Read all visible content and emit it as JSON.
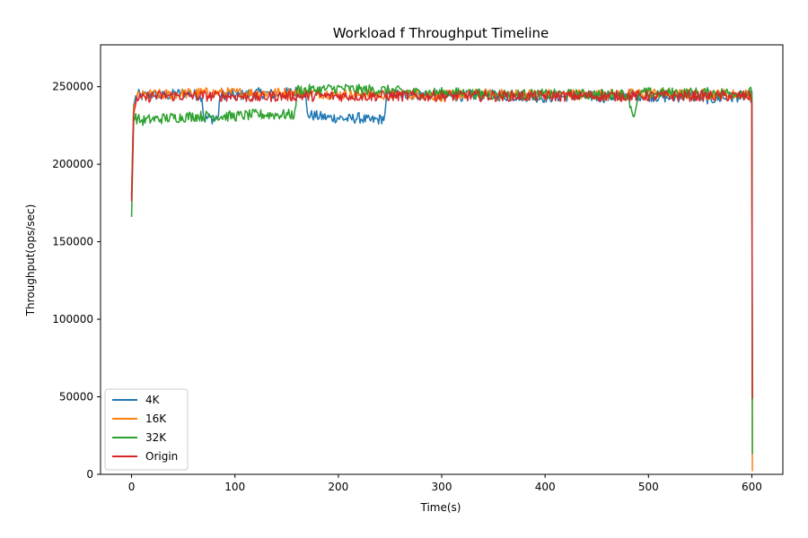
{
  "chart_data": {
    "type": "line",
    "title": "Workload f Throughput Timeline",
    "xlabel": "Time(s)",
    "ylabel": "Throughput(ops/sec)",
    "xlim": [
      -30,
      630
    ],
    "ylim": [
      0,
      277000
    ],
    "x_ticks": [
      0,
      100,
      200,
      300,
      400,
      500,
      600
    ],
    "y_ticks": [
      0,
      50000,
      100000,
      150000,
      200000,
      250000
    ],
    "grid": false,
    "legend_position": "lower-left",
    "series": [
      {
        "name": "4K",
        "color": "#1f77b4",
        "x": [
          0,
          2,
          4,
          6,
          10,
          20,
          30,
          40,
          50,
          60,
          68,
          70,
          75,
          80,
          84,
          86,
          90,
          100,
          120,
          140,
          160,
          165,
          168,
          170,
          180,
          190,
          200,
          210,
          220,
          230,
          240,
          245,
          247,
          250,
          260,
          280,
          300,
          320,
          340,
          360,
          380,
          400,
          420,
          440,
          460,
          480,
          500,
          520,
          540,
          560,
          580,
          590,
          598,
          600,
          600.5
        ],
        "y": [
          180000,
          238000,
          243000,
          245000,
          244000,
          245000,
          244000,
          245000,
          246000,
          245000,
          244000,
          229000,
          230000,
          229000,
          231000,
          245000,
          245000,
          244000,
          246000,
          245000,
          247000,
          246000,
          246000,
          232000,
          231000,
          230000,
          230000,
          229000,
          230000,
          228000,
          229000,
          230000,
          245000,
          246000,
          245000,
          245000,
          244000,
          244000,
          245000,
          244000,
          244000,
          243000,
          244000,
          244000,
          243000,
          245000,
          244000,
          243000,
          244000,
          242000,
          243000,
          244000,
          243000,
          244000,
          48000
        ]
      },
      {
        "name": "16K",
        "color": "#ff7f0e",
        "x": [
          0,
          2,
          4,
          6,
          10,
          20,
          40,
          60,
          80,
          100,
          120,
          140,
          160,
          180,
          200,
          220,
          240,
          260,
          280,
          300,
          320,
          340,
          360,
          380,
          400,
          420,
          440,
          460,
          480,
          500,
          520,
          540,
          560,
          580,
          598,
          600,
          600.5
        ],
        "y": [
          178000,
          236000,
          242000,
          244000,
          244000,
          245000,
          245000,
          246000,
          246000,
          246000,
          246000,
          246000,
          246000,
          246000,
          245000,
          245000,
          245000,
          245000,
          245000,
          244000,
          245000,
          245000,
          245000,
          245000,
          245000,
          245000,
          245000,
          245000,
          245000,
          246000,
          245000,
          245000,
          245000,
          245000,
          245000,
          245000,
          2000
        ]
      },
      {
        "name": "32K",
        "color": "#2ca02c",
        "x": [
          0,
          2,
          4,
          6,
          10,
          20,
          40,
          60,
          80,
          100,
          120,
          140,
          155,
          158,
          160,
          170,
          180,
          200,
          220,
          240,
          260,
          280,
          300,
          320,
          340,
          360,
          380,
          400,
          420,
          440,
          460,
          480,
          485,
          488,
          492,
          500,
          520,
          540,
          560,
          580,
          598,
          600,
          600.5
        ],
        "y": [
          166000,
          228000,
          230000,
          229000,
          228000,
          229000,
          230000,
          231000,
          231000,
          231000,
          232000,
          232000,
          232000,
          232000,
          248000,
          248000,
          248000,
          249000,
          248000,
          248000,
          247000,
          246000,
          246000,
          246000,
          245000,
          245000,
          245000,
          245000,
          245000,
          245000,
          245000,
          245000,
          232000,
          235000,
          246000,
          246000,
          246000,
          246000,
          246000,
          246000,
          246000,
          247000,
          13000
        ]
      },
      {
        "name": "Origin",
        "color": "#d62728",
        "x": [
          0,
          2,
          4,
          6,
          10,
          20,
          40,
          60,
          80,
          100,
          120,
          140,
          160,
          180,
          200,
          220,
          240,
          260,
          280,
          300,
          320,
          340,
          360,
          380,
          400,
          420,
          440,
          460,
          480,
          500,
          520,
          540,
          560,
          580,
          598,
          600,
          600.5
        ],
        "y": [
          176000,
          232000,
          240000,
          243000,
          242000,
          244000,
          244000,
          244000,
          244000,
          244000,
          243000,
          244000,
          244000,
          244000,
          244000,
          244000,
          244000,
          244000,
          244000,
          244000,
          244000,
          244000,
          244000,
          244000,
          244000,
          244000,
          244000,
          244000,
          244000,
          244000,
          244000,
          244000,
          244000,
          244000,
          244000,
          240000,
          49000
        ]
      }
    ]
  }
}
